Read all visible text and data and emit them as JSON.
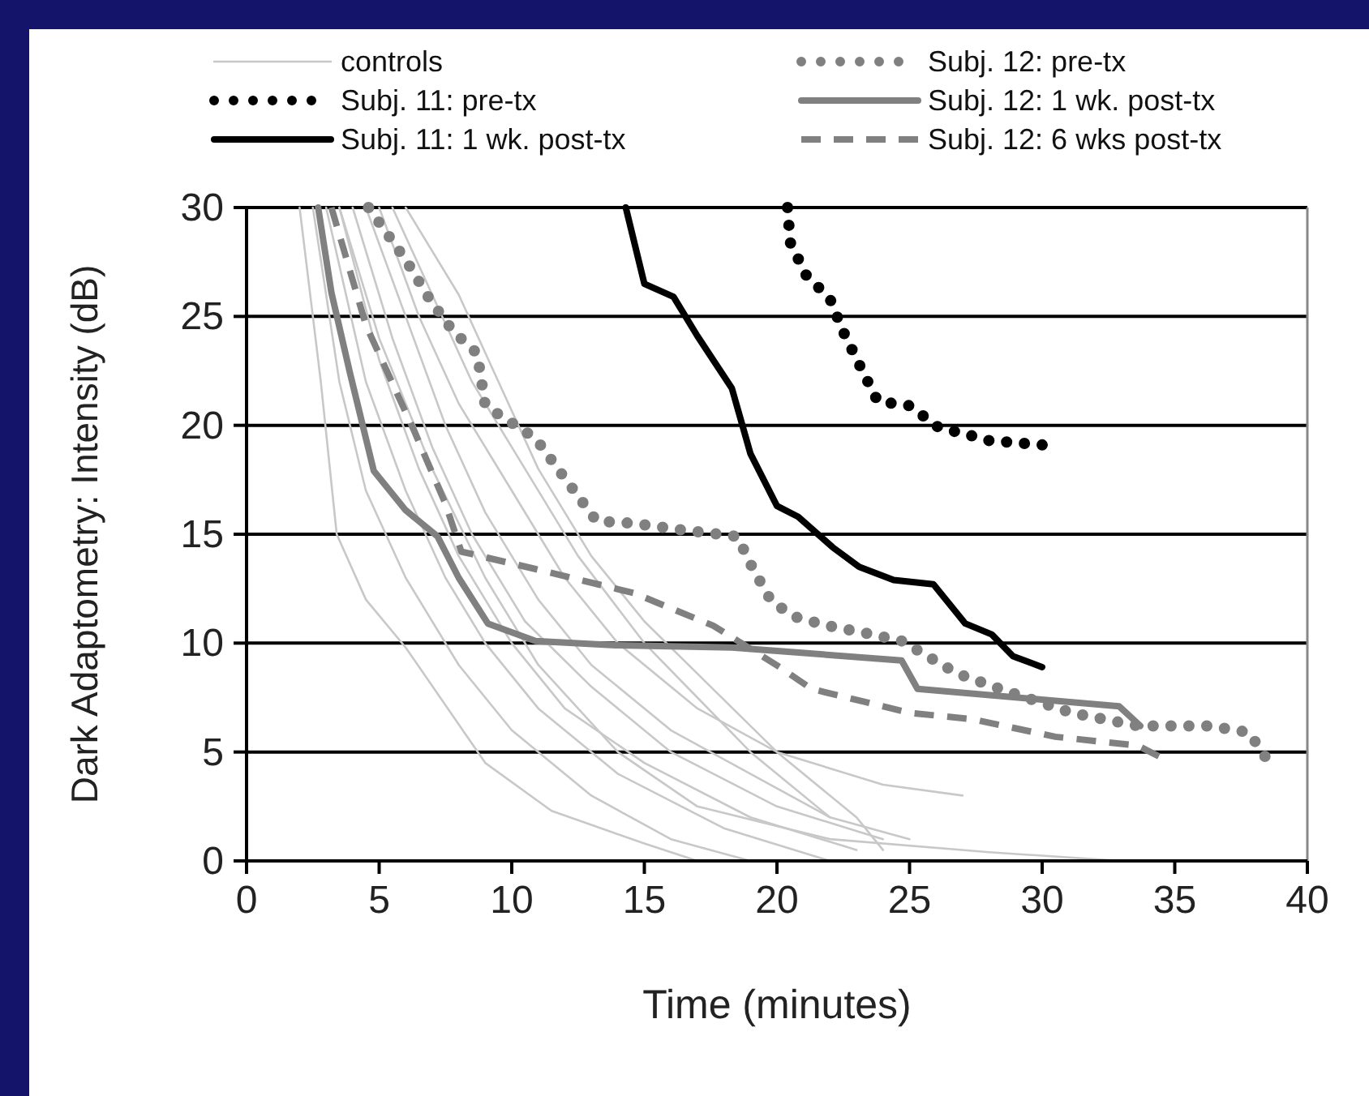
{
  "chart_data": {
    "type": "line",
    "xlabel": "Time (minutes)",
    "ylabel": "Dark Adaptometry: Intensity (dB)",
    "xlim": [
      0,
      40
    ],
    "ylim": [
      0,
      30
    ],
    "xticks": [
      0,
      5,
      10,
      15,
      20,
      25,
      30,
      35,
      40
    ],
    "yticks": [
      0,
      5,
      10,
      15,
      20,
      25,
      30
    ],
    "grid": "y",
    "legend": "top",
    "marker": "none",
    "series": [
      {
        "name": "controls",
        "color": "#c8c8c8",
        "line_style": "solid",
        "x": [
          2,
          2.8,
          3.4,
          4.5,
          6,
          9,
          11.5,
          15,
          17
        ],
        "values": [
          30,
          22,
          15,
          12,
          9.8,
          4.5,
          2.3,
          0.8,
          0
        ]
      },
      {
        "color": "#c8c8c8",
        "line_style": "solid",
        "x": [
          2.5,
          3.5,
          4.5,
          6,
          8,
          10,
          13,
          16,
          19
        ],
        "values": [
          30,
          22,
          17,
          13,
          9,
          6,
          3,
          1,
          0
        ]
      },
      {
        "color": "#c8c8c8",
        "line_style": "solid",
        "x": [
          3,
          4.5,
          6,
          7.5,
          9,
          11,
          14,
          18,
          22
        ],
        "values": [
          30,
          22,
          17,
          13,
          10,
          7,
          4,
          1.5,
          0
        ]
      },
      {
        "color": "#c8c8c8",
        "line_style": "solid",
        "x": [
          3.5,
          5,
          6.5,
          8,
          10,
          12,
          15,
          19,
          23
        ],
        "values": [
          30,
          23,
          18,
          14,
          10,
          7,
          4.5,
          2,
          0.5
        ]
      },
      {
        "color": "#c8c8c8",
        "line_style": "solid",
        "x": [
          4,
          5.5,
          7,
          8.5,
          10.5,
          13,
          16,
          20,
          24
        ],
        "values": [
          30,
          24,
          19,
          15,
          11,
          8,
          5,
          2.5,
          1
        ]
      },
      {
        "color": "#c8c8c8",
        "line_style": "solid",
        "x": [
          4.5,
          6,
          7.5,
          9,
          11,
          13,
          16,
          19,
          22,
          25
        ],
        "values": [
          30,
          25,
          20,
          16,
          12,
          9,
          6,
          4,
          2,
          1
        ]
      },
      {
        "color": "#c8c8c8",
        "line_style": "solid",
        "x": [
          5,
          6.5,
          8,
          10,
          12,
          14,
          17,
          20,
          24,
          27
        ],
        "values": [
          30,
          25,
          21,
          17,
          13,
          10,
          7,
          5,
          3.5,
          3
        ]
      },
      {
        "color": "#c8c8c8",
        "line_style": "solid",
        "x": [
          5.5,
          7,
          8.5,
          10.5,
          12.5,
          15,
          17,
          19,
          22
        ],
        "values": [
          30,
          26,
          22,
          18,
          14,
          10,
          7.5,
          5,
          2
        ]
      },
      {
        "color": "#c8c8c8",
        "line_style": "solid",
        "x": [
          3.5,
          5,
          7,
          9,
          11,
          14,
          17,
          22,
          28,
          33
        ],
        "values": [
          30,
          24,
          18,
          13,
          9,
          5,
          2.5,
          1,
          0.4,
          0
        ]
      },
      {
        "color": "#c8c8c8",
        "line_style": "solid",
        "x": [
          6,
          8,
          9.5,
          11,
          13,
          15,
          17.5,
          20,
          23,
          24
        ],
        "values": [
          30,
          26,
          22,
          18,
          14,
          11,
          8,
          5,
          2,
          0.5
        ]
      },
      {
        "name": "Subj. 11: pre-tx",
        "color": "#000000",
        "line_style": "dotted",
        "x": [
          20.4,
          20.5,
          21.1,
          22,
          22.5,
          23.1,
          23.8,
          25,
          26.1,
          27.1,
          28,
          30
        ],
        "values": [
          30,
          28.4,
          26.9,
          25.8,
          24.3,
          22.8,
          21.1,
          20.9,
          19.9,
          19.6,
          19.3,
          19.1
        ]
      },
      {
        "name": "Subj. 11: 1 wk. post-tx",
        "color": "#000000",
        "line_style": "solid",
        "x": [
          14.3,
          15,
          16.1,
          17,
          18.3,
          19,
          20,
          20.8,
          22.1,
          23.1,
          24.4,
          25.9,
          27.1,
          28.1,
          28.9,
          30
        ],
        "values": [
          30,
          26.5,
          25.9,
          24.1,
          21.7,
          18.7,
          16.3,
          15.8,
          14.4,
          13.5,
          12.9,
          12.7,
          10.9,
          10.4,
          9.4,
          8.9
        ]
      },
      {
        "name": "Subj. 12: pre-tx",
        "color": "#808080",
        "line_style": "dotted",
        "x": [
          4.6,
          6,
          6.9,
          7.8,
          8.7,
          9,
          10.9,
          11.8,
          13.2,
          14.6,
          16.4,
          18.5,
          19.1,
          19.8,
          20.7,
          21.9,
          23.2,
          24.7,
          26.8,
          28.4,
          31.1,
          33.6,
          36.3,
          37.8,
          38.4
        ],
        "values": [
          30,
          27.6,
          25.8,
          24.3,
          23.3,
          20.9,
          19.4,
          17.9,
          15.6,
          15.5,
          15.2,
          14.9,
          13.4,
          11.9,
          11.2,
          10.8,
          10.5,
          10.1,
          8.6,
          7.9,
          6.8,
          6.2,
          6.2,
          5.9,
          4.8
        ]
      },
      {
        "name": "Subj. 12: 1 wk. post-tx",
        "color": "#808080",
        "line_style": "solid",
        "x": [
          2.7,
          3.2,
          3.9,
          4.8,
          6,
          7.2,
          8,
          9.1,
          10.9,
          13.9,
          18.3,
          24.7,
          25.3,
          32.9,
          33.7
        ],
        "values": [
          30,
          26.1,
          22.4,
          17.9,
          16.1,
          14.9,
          13,
          10.9,
          10.1,
          9.9,
          9.8,
          9.2,
          7.9,
          7.1,
          6.2
        ]
      },
      {
        "name": "Subj. 12: 6 wks post-tx",
        "color": "#808080",
        "line_style": "dashed",
        "x": [
          3.2,
          4.5,
          6.3,
          7.5,
          8.1,
          10.9,
          14.6,
          17.6,
          20.1,
          21.3,
          25,
          27.4,
          30.5,
          33.6,
          34.4
        ],
        "values": [
          30,
          24.6,
          19.8,
          16.4,
          14.2,
          13.4,
          12.3,
          10.8,
          8.9,
          7.9,
          6.8,
          6.5,
          5.7,
          5.3,
          4.8
        ]
      }
    ]
  }
}
